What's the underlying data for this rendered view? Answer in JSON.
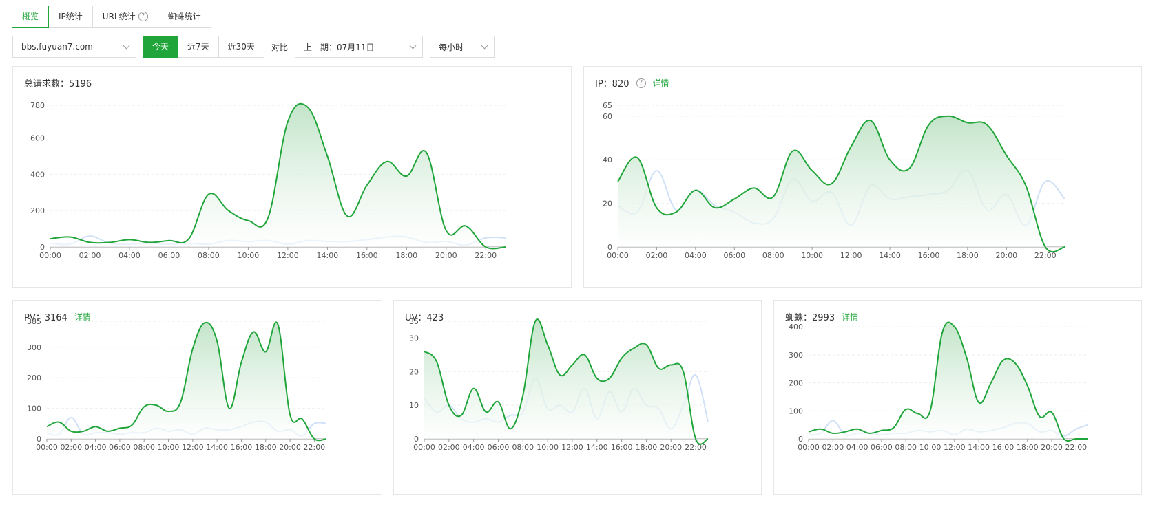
{
  "tabs": [
    {
      "label": "概览",
      "active": true,
      "help": false
    },
    {
      "label": "IP统计",
      "active": false,
      "help": false
    },
    {
      "label": "URL统计",
      "active": false,
      "help": true
    },
    {
      "label": "蜘蛛统计",
      "active": false,
      "help": false
    }
  ],
  "toolbar": {
    "site": "bbs.fuyuan7.com",
    "ranges": [
      {
        "label": "今天",
        "active": true
      },
      {
        "label": "近7天",
        "active": false
      },
      {
        "label": "近30天",
        "active": false
      }
    ],
    "compare_label": "对比",
    "compare_value": "上一期：07月11日",
    "interval": "每小时"
  },
  "colors": {
    "accent": "#20a53a",
    "compare": "#cfe0f7",
    "area_top": "#bfe3c6",
    "border": "#e6e6e6"
  },
  "icons": [
    "help-icon",
    "chevron-down-icon"
  ],
  "charts": {
    "requests": {
      "header": "总请求数：5196",
      "detail": "",
      "help": false,
      "chart_data": {
        "type": "area",
        "x": [
          "00:00",
          "01:00",
          "02:00",
          "03:00",
          "04:00",
          "05:00",
          "06:00",
          "07:00",
          "08:00",
          "09:00",
          "10:00",
          "11:00",
          "12:00",
          "13:00",
          "14:00",
          "15:00",
          "16:00",
          "17:00",
          "18:00",
          "19:00",
          "20:00",
          "21:00",
          "22:00",
          "23:00"
        ],
        "xticks": [
          "00:00",
          "02:00",
          "04:00",
          "06:00",
          "08:00",
          "10:00",
          "12:00",
          "14:00",
          "16:00",
          "18:00",
          "20:00",
          "22:00"
        ],
        "yticks": [
          0,
          200,
          400,
          600,
          780
        ],
        "ylim": [
          0,
          780
        ],
        "series": [
          {
            "values": [
              45,
              55,
              25,
              25,
              40,
              25,
              35,
              45,
              290,
              200,
              145,
              160,
              690,
              770,
              500,
              170,
              340,
              470,
              390,
              520,
              90,
              115,
              0,
              0
            ]
          },
          {
            "values": [
              20,
              15,
              60,
              20,
              15,
              20,
              15,
              20,
              15,
              35,
              30,
              35,
              15,
              35,
              30,
              30,
              40,
              55,
              55,
              25,
              30,
              10,
              50,
              50
            ]
          }
        ]
      }
    },
    "ip": {
      "header": "IP：820",
      "detail": "详情",
      "help": true,
      "chart_data": {
        "type": "area",
        "x": [
          "00:00",
          "01:00",
          "02:00",
          "03:00",
          "04:00",
          "05:00",
          "06:00",
          "07:00",
          "08:00",
          "09:00",
          "10:00",
          "11:00",
          "12:00",
          "13:00",
          "14:00",
          "15:00",
          "16:00",
          "17:00",
          "18:00",
          "19:00",
          "20:00",
          "21:00",
          "22:00",
          "23:00"
        ],
        "xticks": [
          "00:00",
          "02:00",
          "04:00",
          "06:00",
          "08:00",
          "10:00",
          "12:00",
          "14:00",
          "16:00",
          "18:00",
          "20:00",
          "22:00"
        ],
        "yticks": [
          0,
          20,
          40,
          60,
          65
        ],
        "ylim": [
          0,
          65
        ],
        "series": [
          {
            "values": [
              30,
              41,
              18,
              16,
              26,
              18,
              22,
              27,
              23,
              44,
              35,
              29,
              46,
              58,
              40,
              36,
              56,
              60,
              57,
              56,
              42,
              28,
              0,
              0
            ]
          },
          {
            "values": [
              19,
              16,
              35,
              17,
              26,
              19,
              16,
              11,
              13,
              31,
              21,
              25,
              10,
              28,
              22,
              23,
              24,
              26,
              35,
              17,
              24,
              10,
              30,
              22
            ]
          }
        ]
      }
    },
    "pv": {
      "header": "PV：3164",
      "detail": "详情",
      "help": false,
      "chart_data": {
        "type": "area",
        "x": [
          "00:00",
          "01:00",
          "02:00",
          "03:00",
          "04:00",
          "05:00",
          "06:00",
          "07:00",
          "08:00",
          "09:00",
          "10:00",
          "11:00",
          "12:00",
          "13:00",
          "14:00",
          "15:00",
          "16:00",
          "17:00",
          "18:00",
          "19:00",
          "20:00",
          "21:00",
          "22:00",
          "23:00"
        ],
        "xticks": [
          "00:00",
          "02:00",
          "04:00",
          "06:00",
          "08:00",
          "10:00",
          "12:00",
          "14:00",
          "16:00",
          "18:00",
          "20:00",
          "22:00"
        ],
        "yticks": [
          0,
          100,
          200,
          300,
          385
        ],
        "ylim": [
          0,
          385
        ],
        "series": [
          {
            "values": [
              40,
              55,
              25,
              25,
              40,
              25,
              35,
              45,
              105,
              110,
              90,
              120,
              295,
              380,
              320,
              100,
              250,
              350,
              285,
              375,
              80,
              65,
              0,
              0
            ]
          },
          {
            "values": [
              20,
              15,
              70,
              15,
              20,
              20,
              15,
              20,
              20,
              35,
              25,
              30,
              15,
              35,
              30,
              30,
              40,
              55,
              55,
              25,
              30,
              10,
              50,
              50
            ]
          }
        ]
      }
    },
    "uv": {
      "header": "UV：423",
      "detail": "",
      "help": false,
      "chart_data": {
        "type": "area",
        "x": [
          "00:00",
          "01:00",
          "02:00",
          "03:00",
          "04:00",
          "05:00",
          "06:00",
          "07:00",
          "08:00",
          "09:00",
          "10:00",
          "11:00",
          "12:00",
          "13:00",
          "14:00",
          "15:00",
          "16:00",
          "17:00",
          "18:00",
          "19:00",
          "20:00",
          "21:00",
          "22:00",
          "23:00"
        ],
        "xticks": [
          "00:00",
          "02:00",
          "04:00",
          "06:00",
          "08:00",
          "10:00",
          "12:00",
          "14:00",
          "16:00",
          "18:00",
          "20:00",
          "22:00"
        ],
        "yticks": [
          0,
          10,
          20,
          30,
          35
        ],
        "ylim": [
          0,
          35
        ],
        "series": [
          {
            "values": [
              26,
              23,
              10,
              7,
              15,
              8,
              11,
              3,
              13,
              35,
              28,
              19,
              22,
              25,
              18,
              18,
              24,
              27,
              28,
              21,
              22,
              20,
              0,
              0
            ]
          },
          {
            "values": [
              12,
              8,
              10,
              6,
              5,
              6,
              5,
              7,
              8,
              18,
              9,
              10,
              8,
              15,
              6,
              14,
              8,
              15,
              10,
              9,
              3,
              10,
              19,
              5
            ]
          }
        ]
      }
    },
    "spider": {
      "header": "蜘蛛：2993",
      "detail": "详情",
      "help": false,
      "chart_data": {
        "type": "area",
        "x": [
          "00:00",
          "01:00",
          "02:00",
          "03:00",
          "04:00",
          "05:00",
          "06:00",
          "07:00",
          "08:00",
          "09:00",
          "10:00",
          "11:00",
          "12:00",
          "13:00",
          "14:00",
          "15:00",
          "16:00",
          "17:00",
          "18:00",
          "19:00",
          "20:00",
          "21:00",
          "22:00",
          "23:00"
        ],
        "xticks": [
          "00:00",
          "02:00",
          "04:00",
          "06:00",
          "08:00",
          "10:00",
          "12:00",
          "14:00",
          "16:00",
          "18:00",
          "20:00",
          "22:00"
        ],
        "yticks": [
          0,
          100,
          200,
          300,
          400
        ],
        "ylim": [
          0,
          420
        ],
        "series": [
          {
            "values": [
              25,
              35,
              20,
              25,
              35,
              20,
              30,
              40,
              105,
              90,
              100,
              380,
              400,
              290,
              130,
              200,
              280,
              270,
              190,
              80,
              95,
              0,
              0,
              0
            ]
          },
          {
            "values": [
              15,
              20,
              65,
              15,
              20,
              20,
              15,
              20,
              20,
              30,
              25,
              30,
              15,
              35,
              25,
              30,
              40,
              55,
              55,
              25,
              30,
              10,
              35,
              50
            ]
          }
        ]
      }
    }
  }
}
